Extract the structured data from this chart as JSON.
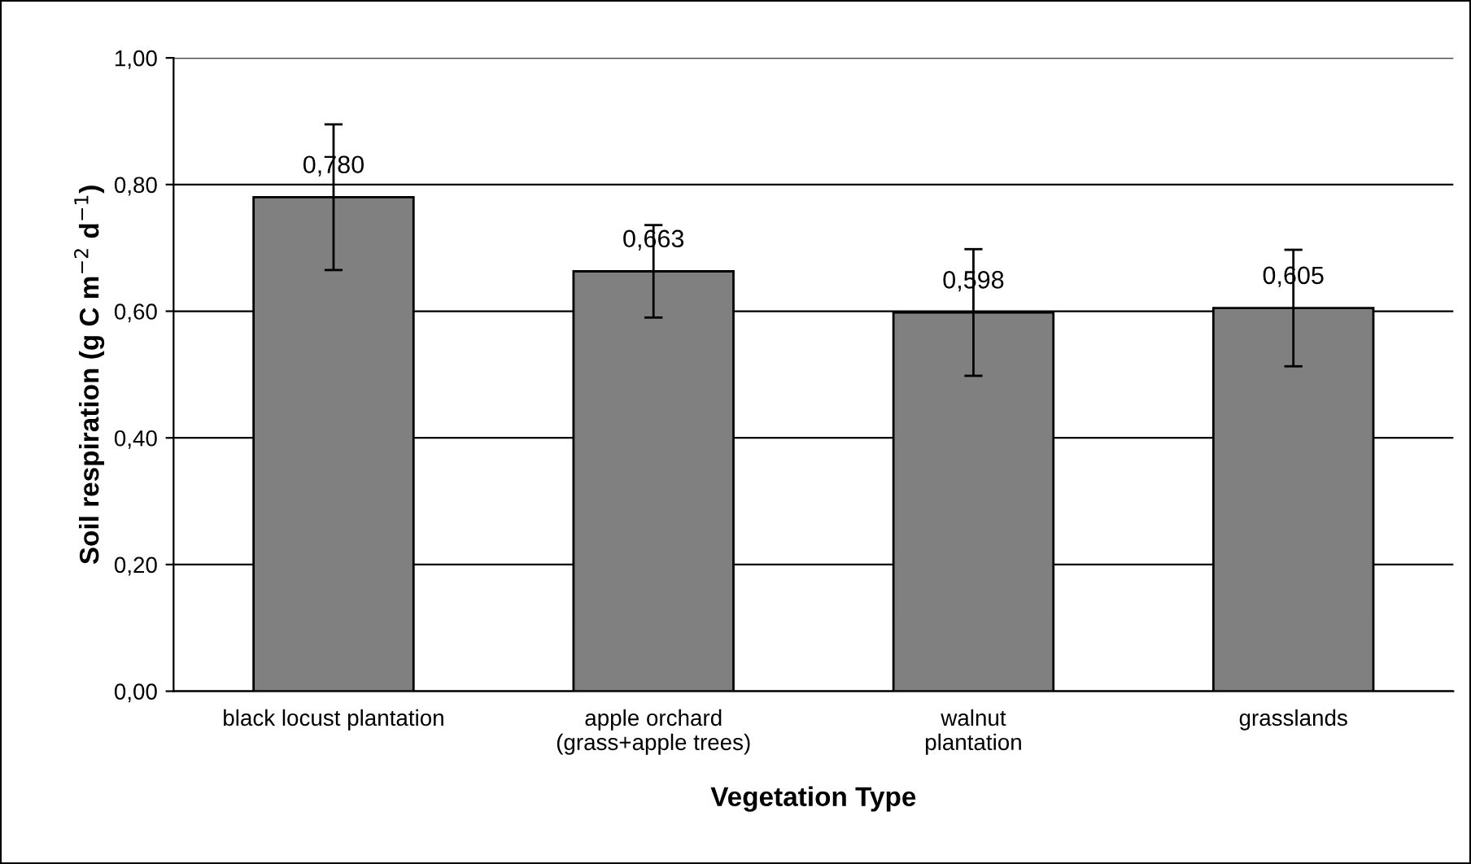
{
  "chart_data": {
    "type": "bar",
    "xlabel": "Vegetation Type",
    "ylabel": "Soil respiration (g C m$^{−2}$ d$^{−1}$)",
    "categories": [
      "black locust plantation",
      "apple orchard\n(grass+apple trees)",
      "walnut\nplantation",
      "grasslands"
    ],
    "values": [
      0.78,
      0.663,
      0.598,
      0.605
    ],
    "errors": [
      0.115,
      0.073,
      0.1,
      0.092
    ],
    "value_labels": [
      "0,780",
      "0,663",
      "0,598",
      "0,605"
    ],
    "color": "#808080",
    "ylim": [
      0,
      1
    ],
    "yticks": [
      {
        "value": 0,
        "label": "0,00"
      },
      {
        "value": 0.2,
        "label": "0,20"
      },
      {
        "value": 0.4,
        "label": "0,40"
      },
      {
        "value": 0.6,
        "label": "0,60"
      },
      {
        "value": 0.8,
        "label": "0,80"
      },
      {
        "value": 1.0,
        "label": "1,00"
      }
    ],
    "grid": "y",
    "legend": false
  }
}
